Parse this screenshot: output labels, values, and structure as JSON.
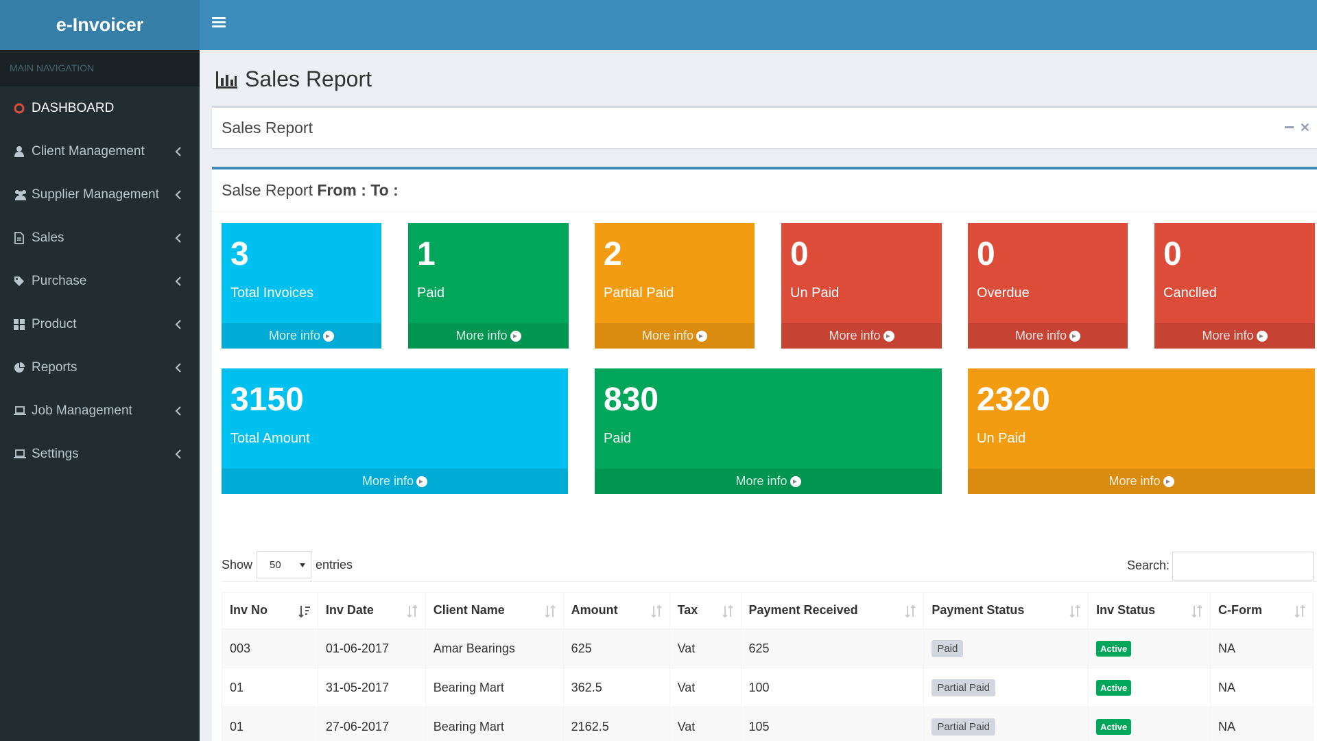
{
  "app": {
    "title": "e-Invoicer"
  },
  "sidebar": {
    "header": "MAIN NAVIGATION",
    "items": [
      {
        "label": "DASHBOARD",
        "icon": "circle-o-icon"
      },
      {
        "label": "Client Management",
        "icon": "user-icon"
      },
      {
        "label": "Supplier Management",
        "icon": "users-icon"
      },
      {
        "label": "Sales",
        "icon": "file-icon"
      },
      {
        "label": "Purchase",
        "icon": "tag-icon"
      },
      {
        "label": "Product",
        "icon": "th-icon"
      },
      {
        "label": "Reports",
        "icon": "pie-chart-icon"
      },
      {
        "label": "Job Management",
        "icon": "laptop-icon"
      },
      {
        "label": "Settings",
        "icon": "laptop-icon"
      }
    ]
  },
  "page": {
    "title": "Sales Report"
  },
  "box1": {
    "title": "Sales Report"
  },
  "report": {
    "header_prefix": "Salse Report ",
    "header_bold": "From : To :"
  },
  "small_boxes": [
    {
      "value": "3",
      "label": "Total Invoices",
      "more": "More info",
      "color": "#00c0ef"
    },
    {
      "value": "1",
      "label": "Paid",
      "more": "More info",
      "color": "#00a65a"
    },
    {
      "value": "2",
      "label": "Partial Paid",
      "more": "More info",
      "color": "#f39c12"
    },
    {
      "value": "0",
      "label": "Un Paid",
      "more": "More info",
      "color": "#dd4b39"
    },
    {
      "value": "0",
      "label": "Overdue",
      "more": "More info",
      "color": "#dd4b39"
    },
    {
      "value": "0",
      "label": "Canclled",
      "more": "More info",
      "color": "#dd4b39"
    }
  ],
  "amount_boxes": [
    {
      "value": "3150",
      "label": "Total Amount",
      "more": "More info",
      "color": "#00c0ef"
    },
    {
      "value": "830",
      "label": "Paid",
      "more": "More info",
      "color": "#00a65a"
    },
    {
      "value": "2320",
      "label": "Un Paid",
      "more": "More info",
      "color": "#f39c12"
    }
  ],
  "table_controls": {
    "show_label": "Show",
    "entries_value": "50",
    "entries_label": "entries",
    "search_label": "Search:"
  },
  "table": {
    "columns": [
      "Inv No",
      "Inv Date",
      "Client Name",
      "Amount",
      "Tax",
      "Payment Received",
      "Payment Status",
      "Inv Status",
      "C-Form"
    ],
    "rows": [
      [
        "003",
        "01-06-2017",
        "Amar Bearings",
        "625",
        "Vat",
        "625",
        "Paid",
        "Active",
        "NA"
      ],
      [
        "01",
        "31-05-2017",
        "Bearing Mart",
        "362.5",
        "Vat",
        "100",
        "Partial Paid",
        "Active",
        "NA"
      ],
      [
        "01",
        "27-06-2017",
        "Bearing Mart",
        "2162.5",
        "Vat",
        "105",
        "Partial Paid",
        "Active",
        "NA"
      ]
    ]
  }
}
